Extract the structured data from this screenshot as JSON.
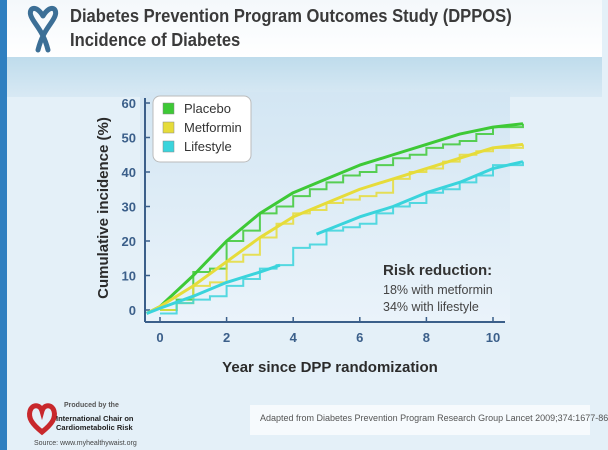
{
  "slide": {
    "title_line1": "Diabetes Prevention Program Outcomes Study (DPPOS)",
    "title_line2": "Incidence of Diabetes",
    "citation": "Adapted from Diabetes Prevention Program Research Group Lancet 2009;374:1677-86",
    "logo_produced": "Produced by the",
    "logo_org_line1": "International Chair on",
    "logo_org_line2": "Cardiometabolic Risk",
    "source": "Source: www.myhealthywaist.org",
    "accent": "#2f7fc0"
  },
  "chart_data": {
    "type": "line",
    "title": "",
    "xlabel": "Year since DPP randomization",
    "ylabel": "Cumulative incidence (%)",
    "xlim": [
      -0.4,
      11
    ],
    "ylim": [
      -2,
      62
    ],
    "xticks": [
      0,
      2,
      4,
      6,
      8,
      10
    ],
    "yticks": [
      0,
      10,
      20,
      30,
      40,
      50,
      60
    ],
    "grid": false,
    "legend_placement": "top-left",
    "annotation": {
      "heading": "Risk reduction:",
      "line1": "18% with metformin",
      "line2": "34% with lifestyle"
    },
    "series": [
      {
        "name": "Placebo",
        "color": "#3ec936",
        "fit": [
          [
            -0.4,
            -1
          ],
          [
            0,
            1
          ],
          [
            1,
            10
          ],
          [
            2,
            20
          ],
          [
            3,
            28
          ],
          [
            4,
            34
          ],
          [
            5,
            38
          ],
          [
            6,
            42
          ],
          [
            7,
            45
          ],
          [
            8,
            48
          ],
          [
            9,
            51
          ],
          [
            10,
            53
          ],
          [
            10.9,
            54
          ]
        ],
        "steps": [
          [
            0,
            0
          ],
          [
            0.5,
            3
          ],
          [
            1,
            11
          ],
          [
            1.5,
            12
          ],
          [
            2,
            20
          ],
          [
            2.5,
            23
          ],
          [
            3,
            28
          ],
          [
            3.5,
            30
          ],
          [
            4,
            33
          ],
          [
            4.5,
            35
          ],
          [
            5,
            37
          ],
          [
            5.5,
            39
          ],
          [
            6,
            40
          ],
          [
            6.5,
            42
          ],
          [
            7,
            44
          ],
          [
            7.5,
            45
          ],
          [
            8,
            47
          ],
          [
            8.5,
            48
          ],
          [
            9,
            49
          ],
          [
            9.5,
            51
          ],
          [
            10,
            53
          ],
          [
            10.9,
            54
          ]
        ]
      },
      {
        "name": "Metformin",
        "color": "#e6dc3a",
        "fit": [
          [
            -0.4,
            -1
          ],
          [
            0,
            1
          ],
          [
            1,
            7
          ],
          [
            2,
            14
          ],
          [
            3,
            21
          ],
          [
            4,
            27
          ],
          [
            5,
            31
          ],
          [
            6,
            35
          ],
          [
            7,
            38
          ],
          [
            8,
            41
          ],
          [
            9,
            44
          ],
          [
            10,
            47
          ],
          [
            10.9,
            48
          ]
        ],
        "steps": [
          [
            0,
            0
          ],
          [
            0.5,
            2
          ],
          [
            1,
            7
          ],
          [
            1.5,
            8
          ],
          [
            2,
            14
          ],
          [
            2.5,
            16
          ],
          [
            3,
            21
          ],
          [
            3.5,
            25
          ],
          [
            4,
            28
          ],
          [
            4.5,
            29
          ],
          [
            5,
            31
          ],
          [
            5.5,
            32
          ],
          [
            6,
            33
          ],
          [
            6.5,
            34
          ],
          [
            7,
            38
          ],
          [
            7.5,
            40
          ],
          [
            8,
            41
          ],
          [
            8.5,
            43
          ],
          [
            9,
            45
          ],
          [
            9.5,
            46
          ],
          [
            10,
            47
          ],
          [
            10.9,
            48
          ]
        ]
      },
      {
        "name": "Lifestyle",
        "color": "#3ad4dc",
        "fit": [
          [
            -0.4,
            -1
          ],
          [
            0,
            0.5
          ],
          [
            1,
            4
          ],
          [
            2,
            8
          ],
          [
            3,
            11
          ],
          [
            3.6,
            13
          ]
        ],
        "fit2": [
          [
            4.7,
            22
          ],
          [
            6,
            27
          ],
          [
            7,
            30
          ],
          [
            8,
            34
          ],
          [
            9,
            37
          ],
          [
            10,
            41
          ],
          [
            10.9,
            43
          ]
        ],
        "steps": [
          [
            0,
            -1
          ],
          [
            0.5,
            2
          ],
          [
            1,
            3
          ],
          [
            1.5,
            4
          ],
          [
            2,
            7
          ],
          [
            2.5,
            9
          ],
          [
            3,
            12
          ],
          [
            3.5,
            13
          ],
          [
            4,
            18
          ],
          [
            4.5,
            19
          ],
          [
            5,
            23
          ],
          [
            5.5,
            24
          ],
          [
            6,
            25
          ],
          [
            6.5,
            28
          ],
          [
            7,
            30
          ],
          [
            7.5,
            31
          ],
          [
            8,
            34
          ],
          [
            8.5,
            35
          ],
          [
            9,
            37
          ],
          [
            9.5,
            39
          ],
          [
            10,
            42
          ],
          [
            10.9,
            43
          ]
        ]
      }
    ]
  }
}
